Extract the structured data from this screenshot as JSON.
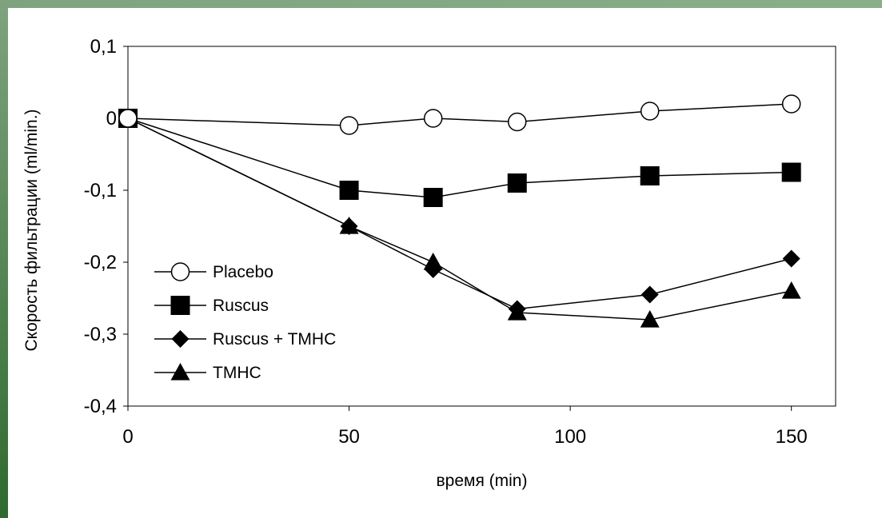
{
  "chart_data": {
    "type": "line",
    "xlabel": "время (min)",
    "ylabel": "Скорость фильтрации (ml/min.)",
    "xlim": [
      0,
      160
    ],
    "ylim": [
      -0.4,
      0.1
    ],
    "x_ticks": [
      "0",
      "50",
      "100",
      "150"
    ],
    "x_tick_values": [
      0,
      50,
      100,
      150
    ],
    "y_ticks": [
      "0,1",
      "0",
      "-0,1",
      "-0,2",
      "-0,3",
      "-0,4"
    ],
    "y_tick_values": [
      0.1,
      0,
      -0.1,
      -0.2,
      -0.3,
      -0.4
    ],
    "grid": false,
    "legend_position": "left",
    "series": [
      {
        "name": "Placebo",
        "marker": "circle-open",
        "color": "#000000",
        "x": [
          0,
          50,
          69,
          88,
          118,
          150
        ],
        "y": [
          0,
          -0.01,
          0,
          -0.005,
          0.01,
          0.02
        ]
      },
      {
        "name": "Ruscus",
        "marker": "square",
        "color": "#000000",
        "x": [
          0,
          50,
          69,
          88,
          118,
          150
        ],
        "y": [
          0,
          -0.1,
          -0.11,
          -0.09,
          -0.08,
          -0.075
        ]
      },
      {
        "name": "Ruscus + TMHC",
        "marker": "diamond",
        "color": "#000000",
        "x": [
          0,
          50,
          69,
          88,
          118,
          150
        ],
        "y": [
          0,
          -0.15,
          -0.21,
          -0.265,
          -0.245,
          -0.195
        ]
      },
      {
        "name": "TMHC",
        "marker": "triangle",
        "color": "#000000",
        "x": [
          0,
          50,
          69,
          88,
          118,
          150
        ],
        "y": [
          0,
          -0.15,
          -0.2,
          -0.27,
          -0.28,
          -0.24
        ]
      }
    ]
  },
  "colors": {
    "frame_green": "#86a985",
    "strip_dark_green": "#2f6a2f",
    "background": "#ffffff"
  }
}
